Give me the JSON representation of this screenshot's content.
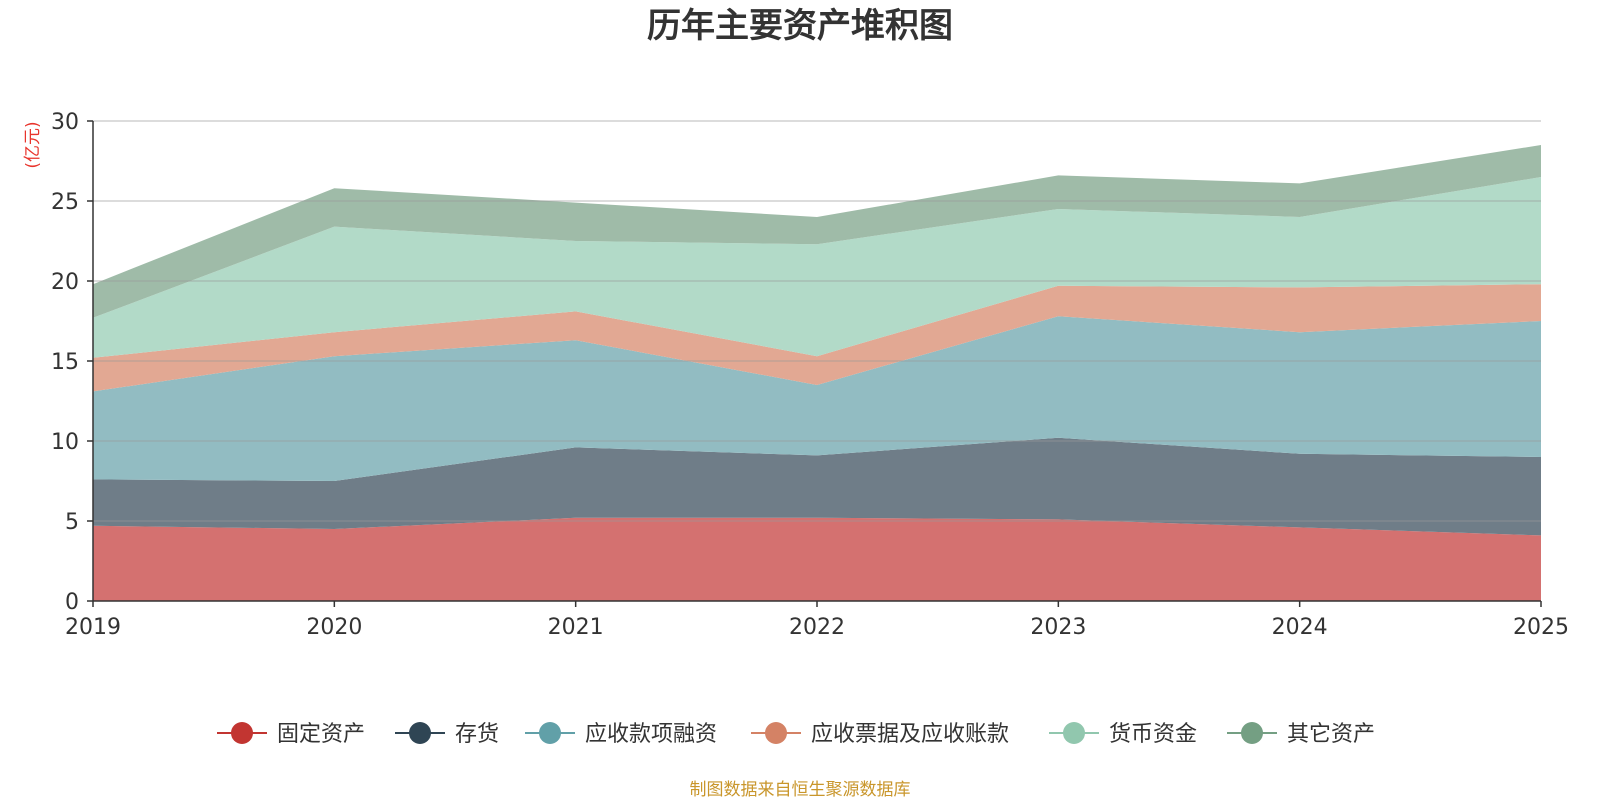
{
  "chart_data": {
    "type": "area",
    "stacked": true,
    "title": "历年主要资产堆积图",
    "unit_label": "(亿元)",
    "source": "制图数据来自恒生聚源数据库",
    "x": [
      "2019",
      "2020",
      "2021",
      "2022",
      "2023",
      "2024",
      "2025"
    ],
    "ylim": [
      0,
      30
    ],
    "yticks": [
      0,
      5,
      10,
      15,
      20,
      25,
      30
    ],
    "grid": true,
    "legend_position": "bottom",
    "series": [
      {
        "name": "固定资产",
        "color": "#c23531",
        "fill": "#d47170",
        "values": [
          4.7,
          4.5,
          5.2,
          5.2,
          5.1,
          4.6,
          4.1
        ]
      },
      {
        "name": "存货",
        "color": "#2f4554",
        "fill": "#6f7d88",
        "values": [
          2.9,
          3.0,
          4.4,
          3.9,
          5.1,
          4.6,
          4.9
        ]
      },
      {
        "name": "应收款项融资",
        "color": "#61a0a8",
        "fill": "#92bcc2",
        "values": [
          5.5,
          7.8,
          6.7,
          4.4,
          7.6,
          7.6,
          8.5
        ]
      },
      {
        "name": "应收票据及应收账款",
        "color": "#d48265",
        "fill": "#e2a893",
        "values": [
          2.1,
          1.5,
          1.8,
          1.8,
          1.9,
          2.8,
          2.3
        ]
      },
      {
        "name": "货币资金",
        "color": "#91c7ae",
        "fill": "#b2dac8",
        "values": [
          2.5,
          6.6,
          4.4,
          7.0,
          4.8,
          4.4,
          6.7
        ]
      },
      {
        "name": "其它资产",
        "color": "#749f83",
        "fill": "#9fbba8",
        "values": [
          2.1,
          2.4,
          2.4,
          1.7,
          2.1,
          2.1,
          2.0
        ]
      }
    ]
  }
}
